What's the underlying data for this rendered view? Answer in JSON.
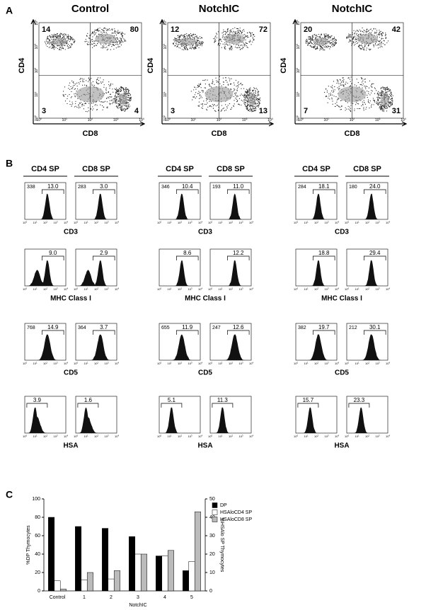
{
  "panel_a": {
    "label": "A",
    "x_label": "CD8",
    "y_label": "CD4",
    "tick_base": "10",
    "tick_exponents": [
      "0",
      "1",
      "2",
      "3",
      "4"
    ],
    "plots": [
      {
        "title": "Control",
        "quadrants": [
          14,
          80,
          3,
          4
        ]
      },
      {
        "title": "NotchIC",
        "quadrants": [
          12,
          72,
          3,
          13
        ]
      },
      {
        "title": "NotchIC",
        "quadrants": [
          20,
          42,
          7,
          31
        ]
      }
    ]
  },
  "panel_b": {
    "label": "B",
    "headers": [
      "CD4 SP",
      "CD8 SP"
    ],
    "rows": [
      {
        "marker": "CD3",
        "counts": [
          338,
          283,
          346,
          193,
          284,
          180
        ],
        "gates": [
          "13.0",
          "3.0",
          "10.4",
          "11.0",
          "18.1",
          "24.0"
        ]
      },
      {
        "marker": "MHC Class I",
        "gates": [
          "9.0",
          "2.9",
          "8.6",
          "12.2",
          "18.8",
          "29.4"
        ]
      },
      {
        "marker": "CD5",
        "counts": [
          768,
          364,
          655,
          247,
          382,
          212
        ],
        "gates": [
          "14.9",
          "3.7",
          "11.9",
          "12.6",
          "19.7",
          "30.1"
        ]
      },
      {
        "marker": "HSA",
        "gates": [
          "3.9",
          "1.6",
          "5.1",
          "11.3",
          "15.7",
          "23.3"
        ]
      }
    ]
  },
  "chart_data": {
    "type": "bar",
    "panel_label": "C",
    "y_label": "%DP Thymocytes",
    "y2_label": "%HSAlo SP Thymocytes",
    "x_group_label": "NotchIC",
    "categories": [
      "Control",
      "1",
      "2",
      "3",
      "4",
      "5"
    ],
    "series": [
      {
        "name": "DP",
        "color": "#000000",
        "values": [
          80,
          70,
          68,
          59,
          38,
          22
        ]
      },
      {
        "name": "HSAloCD4 SP",
        "color": "#ffffff",
        "axis": "y2",
        "values": [
          5.5,
          6,
          6.5,
          20,
          19,
          16
        ]
      },
      {
        "name": "HSAloCD8 SP",
        "color": "#bbbbbb",
        "axis": "y2",
        "values": [
          1,
          10,
          11,
          20,
          22,
          43
        ]
      }
    ],
    "ylim": [
      0,
      100
    ],
    "yticks": [
      0,
      20,
      40,
      60,
      80,
      100
    ],
    "y2lim": [
      0,
      50
    ],
    "y2ticks": [
      0,
      10,
      20,
      30,
      40,
      50
    ]
  }
}
